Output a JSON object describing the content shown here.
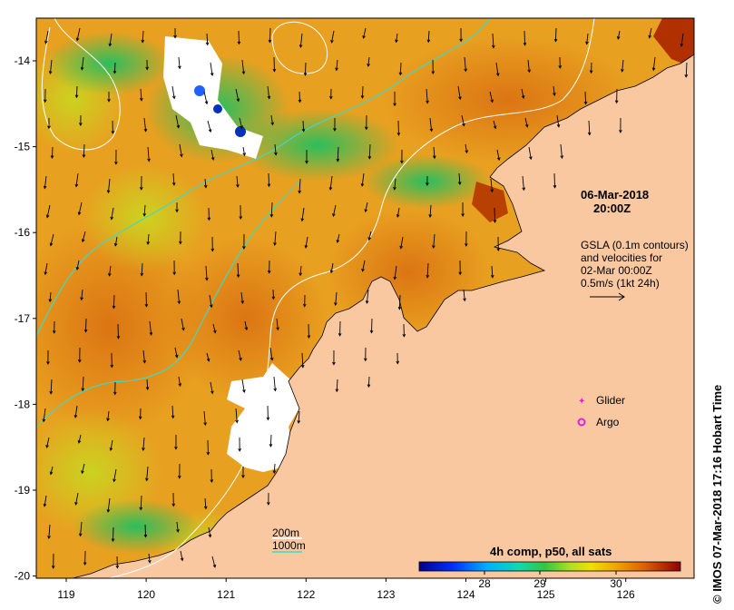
{
  "map": {
    "lon_ticks": [
      "119",
      "120",
      "121",
      "122",
      "123",
      "124",
      "125",
      "126"
    ],
    "lat_ticks": [
      "-14",
      "-15",
      "-16",
      "-17",
      "-18",
      "-19",
      "-20"
    ]
  },
  "annotation": {
    "date": "06-Mar-2018",
    "time": "20:00Z",
    "gsla_line1": "GSLA (0.1m contours)",
    "gsla_line2": "and velocities for",
    "gsla_line3": "02-Mar 00:00Z",
    "gsla_line4": "0.5m/s (1kt 24h)"
  },
  "legend": {
    "glider": "Glider",
    "argo": "Argo",
    "contour_200": "200m",
    "contour_1000": "1000m",
    "colorbar_title": "4h comp, p50, all sats",
    "colorbar_ticks": [
      "28",
      "29",
      "30"
    ],
    "colors": {
      "land": "#f9c8a0",
      "contour_200": "#ffffff",
      "contour_1000": "#40d8c8",
      "glider": "#e020e0",
      "argo": "#e020e0"
    }
  },
  "credit": "© IMOS 07-Mar-2018 17:16 Hobart Time"
}
